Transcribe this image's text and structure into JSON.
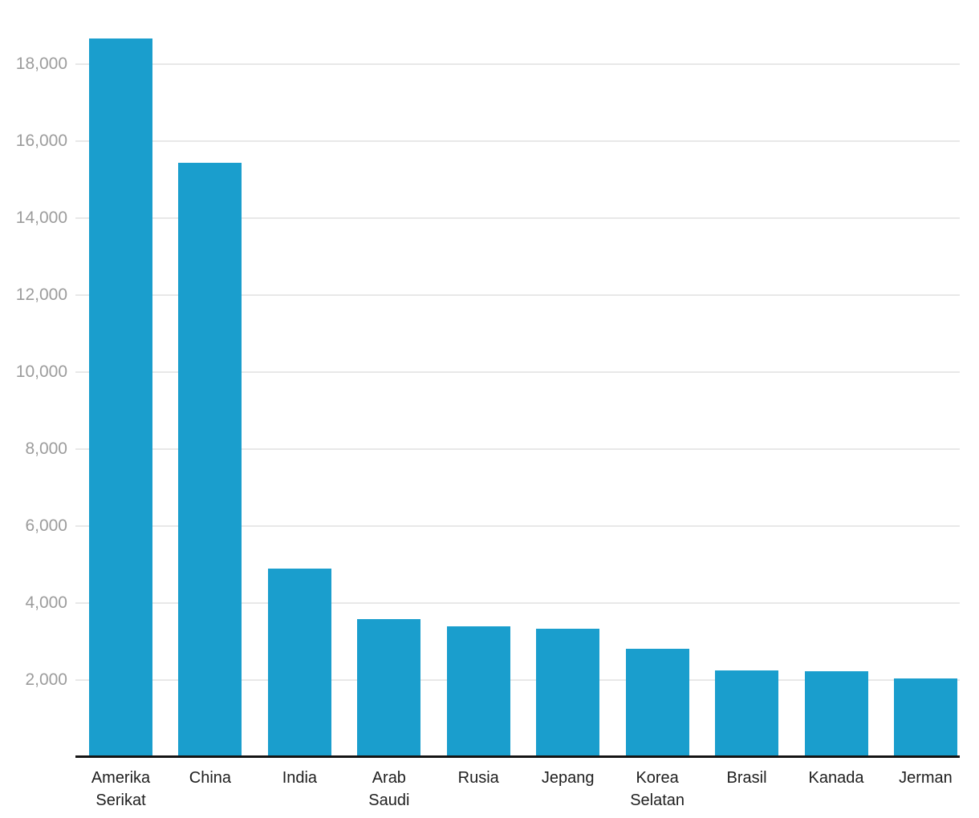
{
  "chart_data": {
    "type": "bar",
    "title": "",
    "xlabel": "",
    "ylabel": "",
    "categories": [
      "Amerika Serikat",
      "China",
      "India",
      "Arab Saudi",
      "Rusia",
      "Jepang",
      "Korea Selatan",
      "Brasil",
      "Kanada",
      "Jerman"
    ],
    "values": [
      18670,
      15440,
      4890,
      3580,
      3400,
      3330,
      2810,
      2250,
      2230,
      2040
    ],
    "y_ticks": [
      2000,
      4000,
      6000,
      8000,
      10000,
      12000,
      14000,
      16000,
      18000
    ],
    "y_tick_labels": [
      "2,000",
      "4,000",
      "6,000",
      "8,000",
      "10,000",
      "12,000",
      "14,000",
      "16,000",
      "18,000"
    ],
    "ylim": [
      0,
      19667
    ],
    "grid": "horizontal",
    "legend": "none",
    "colors": {
      "bar": "#1A9ECD",
      "gridline": "#E8E8E8",
      "axis_line": "#141414",
      "tick_label": "#9C9C9C",
      "category_label": "#202020",
      "background": "#FFFFFF"
    }
  }
}
